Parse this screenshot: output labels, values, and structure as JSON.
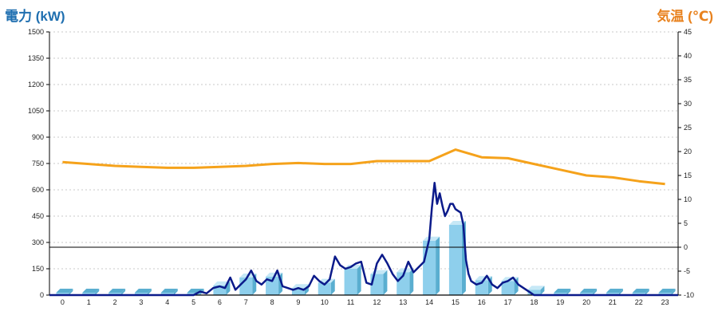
{
  "titles": {
    "left": "電力 (kW)",
    "right": "気温 (℃)"
  },
  "colors": {
    "left_title": "#1f6fb0",
    "right_title": "#e8821e",
    "bar_front": "#8ecfec",
    "bar_side": "#5aaed0",
    "bar_top": "#c6e8f6",
    "power_line": "#0b1a8a",
    "temp_line": "#f5a21b",
    "grid": "#c8c8c8",
    "axis": "#000000"
  },
  "chart_data": {
    "type": "bar",
    "categories": [
      "0",
      "1",
      "2",
      "3",
      "4",
      "5",
      "6",
      "7",
      "8",
      "9",
      "10",
      "11",
      "12",
      "13",
      "14",
      "15",
      "16",
      "17",
      "18",
      "19",
      "20",
      "21",
      "22",
      "23"
    ],
    "y_left": {
      "ylim": [
        0,
        1500
      ],
      "ticks": [
        "0",
        "150",
        "300",
        "450",
        "600",
        "750",
        "900",
        "1050",
        "1200",
        "1350",
        "1500"
      ]
    },
    "y_right": {
      "ylim": [
        -10,
        45
      ],
      "ticks": [
        "-10",
        "-5",
        "0",
        "5",
        "10",
        "15",
        "20",
        "25",
        "30",
        "35",
        "40",
        "45"
      ]
    },
    "grid": true,
    "bars": [
      0,
      0,
      0,
      0,
      0,
      0,
      55,
      100,
      105,
      40,
      70,
      150,
      120,
      130,
      310,
      400,
      85,
      80,
      30,
      0,
      0,
      0,
      0,
      0
    ],
    "power_line": {
      "x": [
        5.0,
        5.25,
        5.5,
        5.75,
        6.0,
        6.2,
        6.4,
        6.6,
        6.8,
        7.0,
        7.2,
        7.4,
        7.6,
        7.8,
        8.0,
        8.2,
        8.4,
        8.6,
        8.8,
        9.0,
        9.2,
        9.4,
        9.6,
        9.8,
        10.0,
        10.2,
        10.4,
        10.6,
        10.8,
        11.0,
        11.2,
        11.4,
        11.6,
        11.8,
        12.0,
        12.2,
        12.4,
        12.6,
        12.8,
        13.0,
        13.2,
        13.4,
        13.6,
        13.8,
        14.0,
        14.1,
        14.2,
        14.3,
        14.4,
        14.5,
        14.6,
        14.7,
        14.8,
        14.9,
        15.0,
        15.1,
        15.2,
        15.3,
        15.4,
        15.5,
        15.6,
        15.8,
        16.0,
        16.2,
        16.4,
        16.6,
        16.8,
        17.0,
        17.2,
        17.4,
        17.6,
        17.8,
        18.0
      ],
      "y": [
        0,
        20,
        10,
        40,
        50,
        40,
        100,
        30,
        60,
        90,
        140,
        80,
        60,
        90,
        80,
        140,
        50,
        40,
        30,
        40,
        30,
        50,
        110,
        80,
        60,
        90,
        220,
        170,
        150,
        160,
        180,
        190,
        70,
        60,
        180,
        230,
        180,
        120,
        80,
        110,
        190,
        130,
        160,
        190,
        320,
        500,
        640,
        520,
        580,
        510,
        450,
        480,
        520,
        520,
        490,
        480,
        470,
        400,
        200,
        120,
        80,
        60,
        70,
        110,
        60,
        40,
        70,
        80,
        100,
        60,
        40,
        20,
        0
      ]
    },
    "temperature_line": {
      "x": [
        0,
        1,
        2,
        3,
        4,
        5,
        6,
        7,
        8,
        9,
        10,
        11,
        12,
        13,
        14,
        15,
        16,
        17,
        18,
        19,
        20,
        21,
        22,
        23
      ],
      "y": [
        17.8,
        17.4,
        17.0,
        16.8,
        16.6,
        16.6,
        16.8,
        17.0,
        17.4,
        17.6,
        17.4,
        17.4,
        18.0,
        18.0,
        18.0,
        20.4,
        18.8,
        18.6,
        17.4,
        16.2,
        15.0,
        14.6,
        13.8,
        13.2
      ]
    }
  }
}
